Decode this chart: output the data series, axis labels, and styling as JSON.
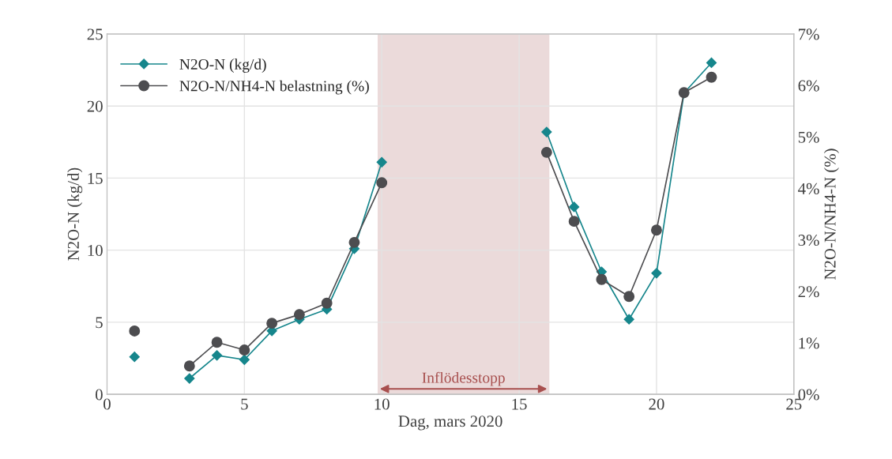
{
  "chart_data": {
    "type": "line",
    "xlabel": "Dag, mars 2020",
    "ylabel": "N2O-N (kg/d)",
    "y2label": "N2O-N/NH4-N (%)",
    "x": [
      1,
      2,
      3,
      4,
      5,
      6,
      7,
      8,
      9,
      10,
      11,
      12,
      13,
      14,
      15,
      16,
      17,
      18,
      19,
      20,
      21,
      22
    ],
    "series": [
      {
        "name": "N2O-N (kg/d)",
        "color": "#16868c",
        "marker": "diamond",
        "values": [
          2.6,
          null,
          1.1,
          2.7,
          2.4,
          4.4,
          5.2,
          5.9,
          10.1,
          16.1,
          null,
          null,
          null,
          null,
          null,
          18.2,
          13.0,
          8.5,
          5.2,
          8.4,
          20.9,
          23.0
        ]
      },
      {
        "name": "N2O-N/NH4-N belastning (%)",
        "color": "#4d4d50",
        "marker": "circle",
        "axis": "y2",
        "values": [
          1.23,
          null,
          0.55,
          1.01,
          0.86,
          1.38,
          1.55,
          1.77,
          2.95,
          4.11,
          null,
          null,
          null,
          null,
          null,
          4.7,
          3.36,
          2.23,
          1.9,
          3.19,
          5.86,
          6.16
        ]
      }
    ],
    "xlim": [
      0,
      25
    ],
    "xticks": [
      0,
      5,
      10,
      15,
      20,
      25
    ],
    "ylim": [
      0,
      25
    ],
    "yticks": [
      0,
      5,
      10,
      15,
      20,
      25
    ],
    "y2lim": [
      0,
      7
    ],
    "y2ticks": [
      {
        "value": 0,
        "label": "0%"
      },
      {
        "value": 1,
        "label": "1%"
      },
      {
        "value": 2,
        "label": "2%"
      },
      {
        "value": 3,
        "label": "3%"
      },
      {
        "value": 4,
        "label": "4%"
      },
      {
        "value": 5,
        "label": "5%"
      },
      {
        "value": 6,
        "label": "6%"
      },
      {
        "value": 7,
        "label": "7%"
      }
    ],
    "bands": [
      {
        "axis": "x",
        "from": 9.85,
        "to": 16.1,
        "label": "Inflödesstopp",
        "color": "#ebdada"
      }
    ],
    "grid": true,
    "legend": "top left"
  }
}
